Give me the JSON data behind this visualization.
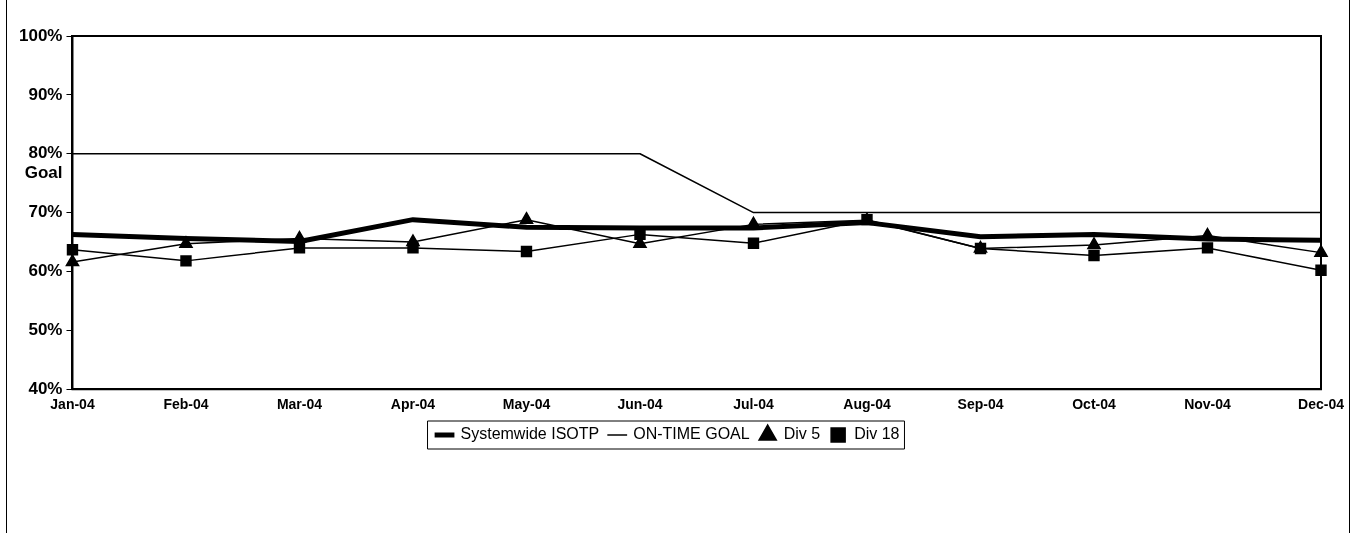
{
  "chart_data": {
    "type": "line",
    "categories": [
      "Jan-04",
      "Feb-04",
      "Mar-04",
      "Apr-04",
      "May-04",
      "Jun-04",
      "Jul-04",
      "Aug-04",
      "Sep-04",
      "Oct-04",
      "Nov-04",
      "Dec-04"
    ],
    "series": [
      {
        "name": "Systemwide ISOTP",
        "color": "#000000",
        "marker": "none",
        "values": [
          66.3,
          65.6,
          65.1,
          68.8,
          67.5,
          67.4,
          67.4,
          68.3,
          65.9,
          66.3,
          65.5,
          65.3
        ]
      },
      {
        "name": "ON-TIME GOAL",
        "color": "#000000",
        "marker": "none",
        "values": [
          80,
          80,
          80,
          80,
          80,
          80,
          70,
          70,
          70,
          70,
          70,
          70
        ]
      },
      {
        "name": "Div 5",
        "color": "#000000",
        "marker": "triangle",
        "values": [
          61.6,
          64.7,
          65.6,
          65.0,
          68.8,
          64.7,
          68.0,
          68.7,
          63.9,
          64.5,
          66.1,
          63.2
        ]
      },
      {
        "name": "Div 18",
        "color": "#000000",
        "marker": "square",
        "values": [
          63.7,
          61.8,
          64.0,
          64.0,
          63.4,
          66.3,
          64.8,
          68.8,
          63.9,
          62.7,
          64.0,
          60.2
        ]
      }
    ],
    "ylim": [
      40,
      100
    ],
    "yticks": [
      {
        "value": 40,
        "label": "40%"
      },
      {
        "value": 50,
        "label": "50%"
      },
      {
        "value": 60,
        "label": "60%"
      },
      {
        "value": 70,
        "label": "70%"
      },
      {
        "value": 80,
        "label": "80%"
      },
      {
        "value": 90,
        "label": "90%"
      },
      {
        "value": 100,
        "label": "100%"
      }
    ],
    "annotations": [
      "Goal"
    ],
    "grid": false,
    "legend": "bottom"
  }
}
